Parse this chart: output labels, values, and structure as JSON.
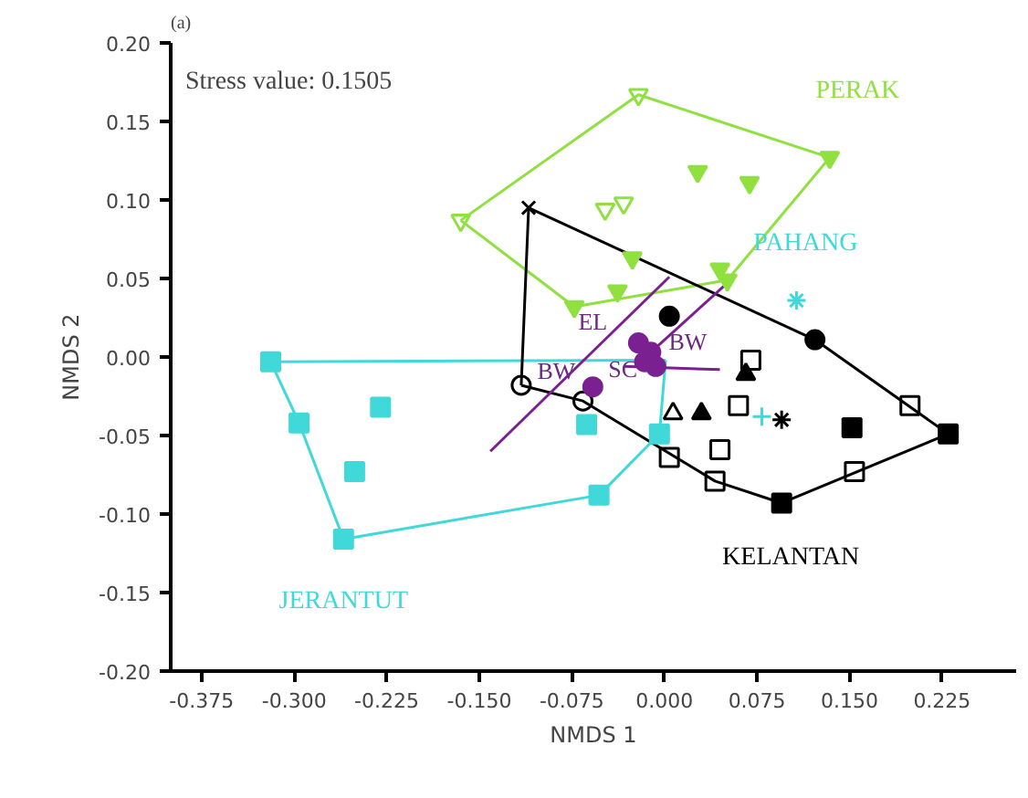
{
  "chart_data": {
    "type": "scatter",
    "title": "(a)",
    "xlabel": "NMDS 1",
    "ylabel": "NMDS 2",
    "grid": false,
    "xlim": [
      -0.4,
      0.285
    ],
    "ylim": [
      -0.2,
      0.2
    ],
    "xticks": [
      {
        "value": -0.375,
        "label": "-0.375"
      },
      {
        "value": -0.3,
        "label": "-0.300"
      },
      {
        "value": -0.225,
        "label": "-0.225"
      },
      {
        "value": -0.15,
        "label": "-0.150"
      },
      {
        "value": -0.075,
        "label": "-0.075"
      },
      {
        "value": 0,
        "label": "0.000"
      },
      {
        "value": 0.075,
        "label": "0.075"
      },
      {
        "value": 0.15,
        "label": "0.150"
      },
      {
        "value": 0.225,
        "label": "0.225"
      }
    ],
    "yticks": [
      {
        "value": -0.2,
        "label": "-0.20"
      },
      {
        "value": -0.15,
        "label": "-0.15"
      },
      {
        "value": -0.1,
        "label": "-0.10"
      },
      {
        "value": -0.05,
        "label": "-0.05"
      },
      {
        "value": 0,
        "label": "0.00"
      },
      {
        "value": 0.05,
        "label": "0.05"
      },
      {
        "value": 0.1,
        "label": "0.10"
      },
      {
        "value": 0.15,
        "label": "0.15"
      },
      {
        "value": 0.2,
        "label": "0.20"
      }
    ],
    "annotations": [
      "Stress value: 0.1505",
      {
        "text": "EL",
        "x": -0.021,
        "y": 0.009
      },
      {
        "text": "BW",
        "x": -0.021,
        "y": 0.009
      },
      {
        "text": "BW",
        "x": -0.058,
        "y": -0.019
      },
      {
        "text": "SC",
        "x": -0.016,
        "y": -0.003
      }
    ],
    "series": [
      {
        "type": "line",
        "name": "PERAK",
        "color": "#90e040",
        "x": [
          -0.165,
          -0.021,
          0.134
        ],
        "values": [
          0.087,
          0.167,
          0.127
        ]
      },
      {
        "type": "line",
        "color": "#90e040",
        "x": [
          -0.165,
          -0.073,
          0.051,
          0.134
        ],
        "values": [
          0.087,
          0.032,
          0.049,
          0.127
        ]
      },
      {
        "type": "line",
        "color": "#40d8d8",
        "x": [
          -0.319,
          0.001
        ],
        "values": [
          -0.003,
          -0.002
        ]
      },
      {
        "type": "line",
        "name": "JERANTUT",
        "color": "#40d8d8",
        "x": [
          -0.319,
          -0.296,
          -0.26,
          -0.053,
          -0.004,
          0.001
        ],
        "values": [
          -0.003,
          -0.042,
          -0.116,
          -0.088,
          -0.049,
          -0.002
        ]
      },
      {
        "type": "line",
        "color": "#000000",
        "x": [
          -0.116,
          -0.11,
          0.122,
          0.23
        ],
        "values": [
          -0.018,
          0.095,
          0.011,
          -0.049
        ]
      },
      {
        "type": "line",
        "name": "KELANTAN",
        "color": "#000000",
        "x": [
          -0.116,
          -0.066,
          0.041,
          0.095,
          0.23
        ],
        "values": [
          -0.018,
          -0.028,
          -0.079,
          -0.093,
          -0.049
        ]
      },
      {
        "type": "line",
        "color": "#7b2090",
        "x": [
          -0.141,
          0.004
        ],
        "values": [
          -0.06,
          0.051
        ]
      },
      {
        "type": "line",
        "color": "#7b2090",
        "x": [
          -0.033,
          0.045
        ],
        "values": [
          -0.006,
          -0.008
        ]
      },
      {
        "type": "line",
        "color": "#7b2090",
        "x": [
          -0.011,
          0.048
        ],
        "values": [
          0.003,
          0.045
        ]
      },
      {
        "color": "#90e040",
        "marker": "triangle",
        "x": [
          -0.021,
          -0.165,
          -0.048,
          -0.033
        ],
        "values": [
          0.167,
          0.087,
          0.094,
          0.098
        ]
      },
      {
        "color": "#90e040",
        "marker": "triangle",
        "x": [
          0.134,
          0.027,
          0.069,
          -0.026,
          0.045,
          0.051,
          -0.038,
          -0.073
        ],
        "values": [
          0.127,
          0.118,
          0.111,
          0.063,
          0.056,
          0.049,
          0.042,
          0.032
        ]
      },
      {
        "color": "#40d8d8",
        "marker": "square",
        "x": [
          -0.319,
          -0.296,
          -0.23,
          -0.251,
          -0.26,
          -0.053,
          -0.063,
          -0.004
        ],
        "values": [
          -0.003,
          -0.042,
          -0.032,
          -0.073,
          -0.116,
          -0.088,
          -0.043,
          -0.049
        ]
      },
      {
        "name": "PAHANG",
        "color": "#40d8d8",
        "marker": "cross",
        "x": [
          0.107
        ],
        "values": [
          0.036
        ]
      },
      {
        "color": "#40d8d8",
        "marker": "cross",
        "x": [
          0.079
        ],
        "values": [
          -0.038
        ]
      },
      {
        "color": "#000000",
        "marker": "x",
        "x": [
          -0.11
        ],
        "values": [
          0.095
        ]
      },
      {
        "color": "#000000",
        "marker": "circle",
        "x": [
          -0.116,
          -0.066
        ],
        "values": [
          -0.018,
          -0.028
        ]
      },
      {
        "color": "#000000",
        "marker": "circle",
        "x": [
          0.122,
          0.004
        ],
        "values": [
          0.011,
          0.026
        ]
      },
      {
        "color": "#000000",
        "marker": "square",
        "x": [
          0.23,
          0.095,
          0.152
        ],
        "values": [
          -0.049,
          -0.093,
          -0.045
        ]
      },
      {
        "color": "#000000",
        "marker": "square",
        "x": [
          0.041,
          0.004,
          0.07,
          0.06,
          0.045,
          0.199,
          0.154
        ],
        "values": [
          -0.079,
          -0.064,
          -0.002,
          -0.031,
          -0.059,
          -0.031,
          -0.073
        ]
      },
      {
        "color": "#000000",
        "marker": "triangle",
        "x": [
          0.066,
          0.03
        ],
        "values": [
          -0.011,
          -0.036
        ]
      },
      {
        "color": "#000000",
        "marker": "triangle",
        "x": [
          0.007
        ],
        "values": [
          -0.036
        ]
      },
      {
        "color": "#000000",
        "marker": "cross",
        "x": [
          0.095
        ],
        "values": [
          -0.04
        ]
      },
      {
        "color": "#7b2090",
        "marker": "circle",
        "x": [
          -0.021,
          -0.011,
          -0.007,
          -0.016,
          -0.058
        ],
        "values": [
          0.009,
          0.003,
          -0.006,
          -0.003,
          -0.019
        ]
      }
    ]
  }
}
